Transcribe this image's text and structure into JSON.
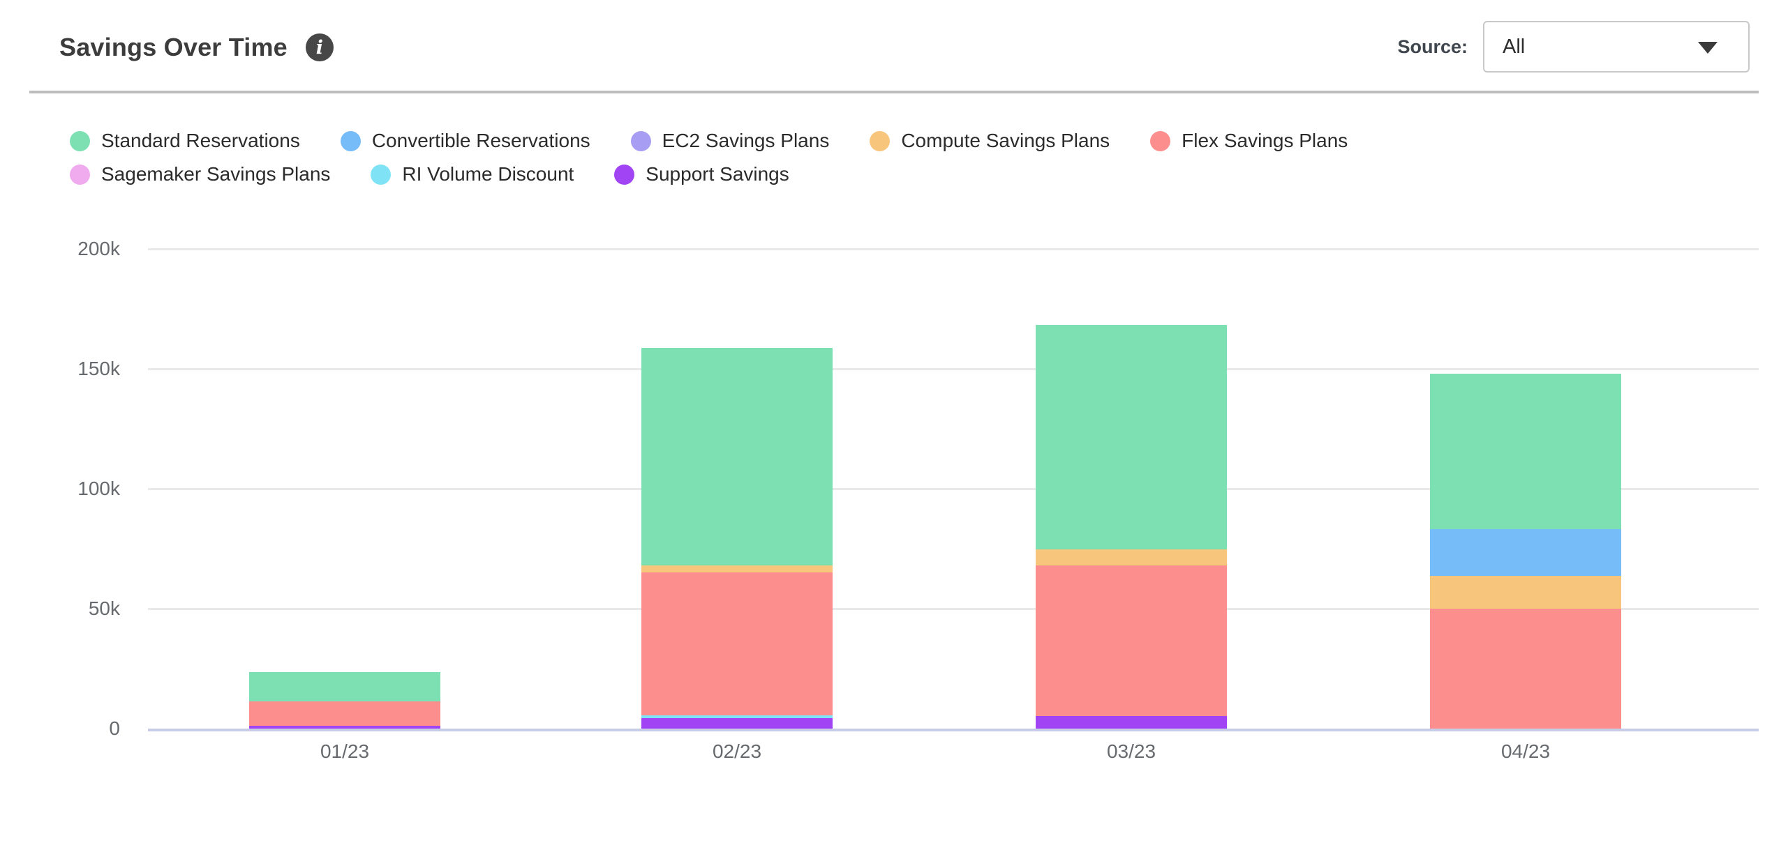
{
  "header": {
    "title": "Savings Over Time",
    "info_icon": "info-circle-icon",
    "info_glyph": "i",
    "source_label": "Source:",
    "source_value": "All"
  },
  "chart_data": {
    "type": "bar",
    "stacked": true,
    "title": "Savings Over Time",
    "xlabel": "",
    "ylabel": "",
    "categories": [
      "01/23",
      "02/23",
      "03/23",
      "04/23"
    ],
    "series": [
      {
        "name": "Standard Reservations",
        "color": "#7DE0B2",
        "values": [
          12200,
          90700,
          93600,
          64800
        ]
      },
      {
        "name": "Convertible Reservations",
        "color": "#76BCF9",
        "values": [
          0,
          0,
          0,
          19500
        ]
      },
      {
        "name": "EC2 Savings Plans",
        "color": "#A79EF3",
        "values": [
          0,
          0,
          0,
          0
        ]
      },
      {
        "name": "Compute Savings Plans",
        "color": "#F8C57D",
        "values": [
          0,
          2900,
          6700,
          13700
        ]
      },
      {
        "name": "Flex Savings Plans",
        "color": "#FC8F8E",
        "values": [
          10200,
          59600,
          62800,
          50000
        ]
      },
      {
        "name": "Sagemaker Savings Plans",
        "color": "#EFABEE",
        "values": [
          0,
          0,
          0,
          0
        ]
      },
      {
        "name": "RI Volume Discount",
        "color": "#80E3F5",
        "values": [
          0,
          1200,
          0,
          0
        ]
      },
      {
        "name": "Support Savings",
        "color": "#A144F3",
        "values": [
          1200,
          4400,
          5200,
          0
        ]
      }
    ],
    "stack_bottom_to_top": [
      "Support Savings",
      "RI Volume Discount",
      "Sagemaker Savings Plans",
      "Flex Savings Plans",
      "Compute Savings Plans",
      "EC2 Savings Plans",
      "Convertible Reservations",
      "Standard Reservations"
    ],
    "totals": [
      23600,
      158800,
      168300,
      148000
    ],
    "ylim": [
      0,
      200000
    ],
    "yticks": [
      {
        "value": 0,
        "label": "0"
      },
      {
        "value": 50000,
        "label": "50k"
      },
      {
        "value": 100000,
        "label": "100k"
      },
      {
        "value": 150000,
        "label": "150k"
      },
      {
        "value": 200000,
        "label": "200k"
      }
    ],
    "grid": true,
    "legend_position": "top",
    "axis_line_color": "#C7CDE9",
    "gridline_color": "#E9E9E9"
  }
}
